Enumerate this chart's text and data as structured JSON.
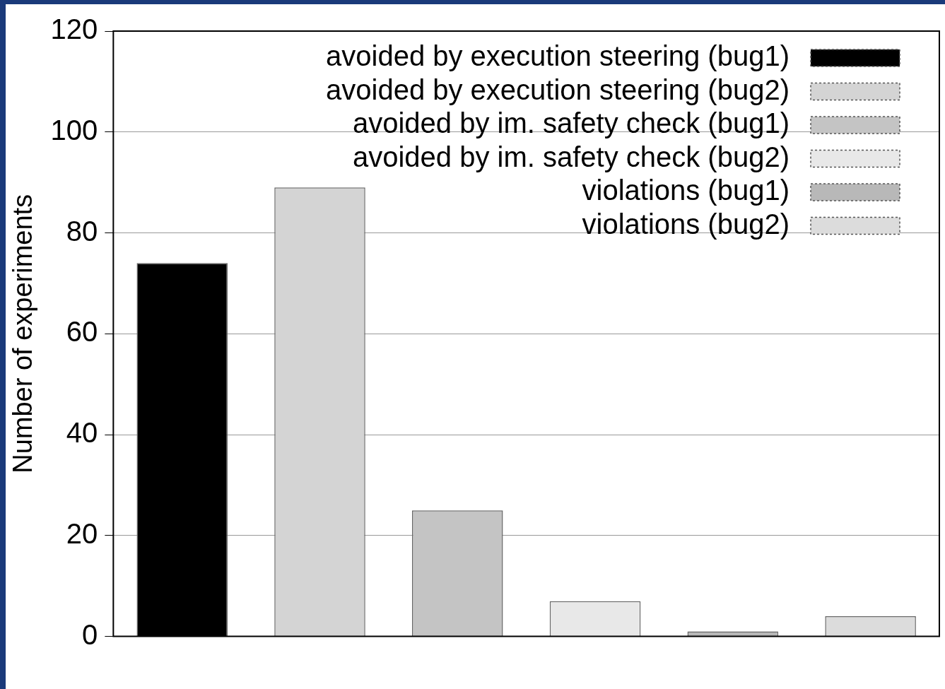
{
  "chart_data": {
    "type": "bar",
    "ylabel": "Number of experiments",
    "categories": [
      null,
      null,
      null
    ],
    "series": [
      {
        "name": "avoided by execution steering (bug1)",
        "color": "#000000",
        "values": [
          74,
          null,
          null
        ]
      },
      {
        "name": "avoided by execution steering (bug2)",
        "color": "#d4d4d4",
        "values": [
          89,
          null,
          null
        ]
      },
      {
        "name": "avoided by im. safety check (bug1)",
        "color": "#c4c4c4",
        "values": [
          null,
          25,
          null
        ]
      },
      {
        "name": "avoided by im. safety check (bug2)",
        "color": "#e8e8e8",
        "values": [
          null,
          7,
          null
        ]
      },
      {
        "name": "violations (bug1)",
        "color": "#b8b8b8",
        "values": [
          null,
          null,
          1
        ]
      },
      {
        "name": "violations (bug2)",
        "color": "#dcdcdc",
        "values": [
          null,
          null,
          4
        ]
      }
    ],
    "ylim": [
      0,
      120
    ],
    "yticks": [
      0,
      20,
      40,
      60,
      80,
      100,
      120
    ],
    "grid": "y",
    "legend": "top right"
  }
}
